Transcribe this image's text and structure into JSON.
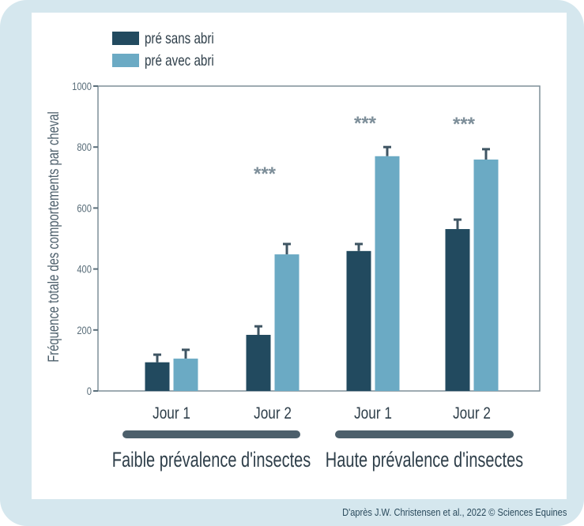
{
  "chart_data": {
    "type": "bar",
    "ylabel": "Fréquence totale  des comportements par cheval",
    "ylim": [
      0,
      1000
    ],
    "yticks": [
      0,
      200,
      400,
      600,
      800,
      1000
    ],
    "categories": [
      "Jour 1",
      "Jour 2",
      "Jour 1",
      "Jour 2"
    ],
    "groups": [
      {
        "label": "Faible prévalence d'insectes",
        "categories": [
          0,
          1
        ]
      },
      {
        "label": "Haute prévalence d'insectes",
        "categories": [
          2,
          3
        ]
      }
    ],
    "series": [
      {
        "name": "pré sans abri",
        "color": "#224a5f",
        "values": [
          94,
          184,
          459,
          531
        ],
        "error_upper": [
          119,
          212,
          482,
          562
        ]
      },
      {
        "name": "pré avec abri",
        "color": "#6baac4",
        "values": [
          106,
          448,
          770,
          759
        ],
        "error_upper": [
          135,
          482,
          800,
          793
        ]
      }
    ],
    "annotations": [
      "",
      "***",
      "***",
      "***"
    ],
    "legend": "top-left",
    "grid": false
  },
  "credit": "D'après J.W. Christensen et al., 2022 © Sciences Equines"
}
